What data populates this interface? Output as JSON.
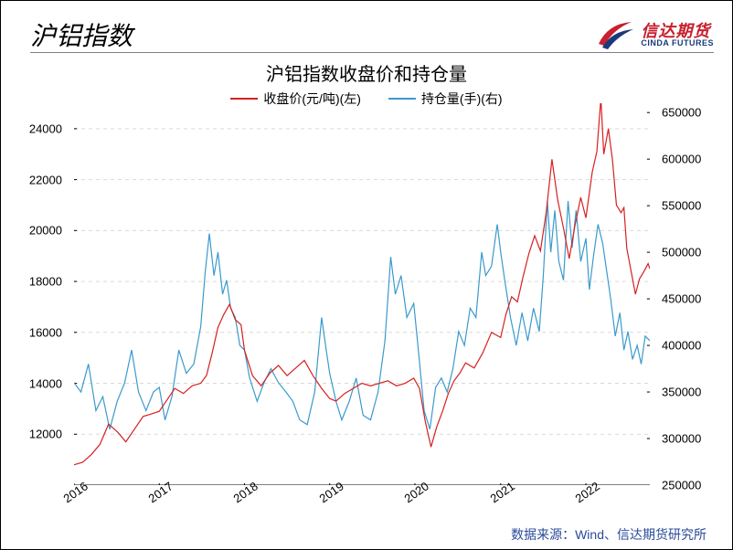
{
  "page_title": "沪铝指数",
  "logo": {
    "cn": "信达期货",
    "en": "CINDA FUTURES",
    "red": "#c8202f",
    "blue": "#1a3a7a"
  },
  "chart": {
    "type": "line-dual-axis",
    "title": "沪铝指数收盘价和持仓量",
    "legend": [
      {
        "label": "收盘价(元/吨)(左)",
        "color": "#d62020"
      },
      {
        "label": "持仓量(手)(右)",
        "color": "#3a9acc"
      }
    ],
    "x": {
      "ticks": [
        "2016",
        "2017",
        "2018",
        "2019",
        "2020",
        "2021",
        "2022"
      ],
      "tick_positions": [
        0,
        0.148,
        0.296,
        0.444,
        0.592,
        0.741,
        0.889
      ],
      "rotate": -35
    },
    "y_left": {
      "min": 10000,
      "max": 25000,
      "ticks": [
        12000,
        14000,
        16000,
        18000,
        20000,
        22000,
        24000
      ],
      "color": "#000"
    },
    "y_right": {
      "min": 250000,
      "max": 660000,
      "ticks": [
        250000,
        300000,
        350000,
        400000,
        450000,
        500000,
        550000,
        600000,
        650000
      ],
      "color": "#000"
    },
    "grid_color": "#d9d9d9",
    "background_color": "#ffffff",
    "line_width": 1.2,
    "series_price": {
      "color": "#d62020",
      "axis": "left",
      "data": [
        [
          0.0,
          10800
        ],
        [
          0.015,
          10900
        ],
        [
          0.03,
          11200
        ],
        [
          0.045,
          11600
        ],
        [
          0.06,
          12400
        ],
        [
          0.075,
          12100
        ],
        [
          0.09,
          11700
        ],
        [
          0.105,
          12200
        ],
        [
          0.12,
          12700
        ],
        [
          0.135,
          12800
        ],
        [
          0.148,
          12900
        ],
        [
          0.16,
          13300
        ],
        [
          0.175,
          13800
        ],
        [
          0.19,
          13600
        ],
        [
          0.205,
          13900
        ],
        [
          0.22,
          14000
        ],
        [
          0.23,
          14300
        ],
        [
          0.24,
          15200
        ],
        [
          0.25,
          16200
        ],
        [
          0.26,
          16700
        ],
        [
          0.27,
          17100
        ],
        [
          0.28,
          16500
        ],
        [
          0.29,
          16300
        ],
        [
          0.296,
          15300
        ],
        [
          0.31,
          14300
        ],
        [
          0.325,
          13900
        ],
        [
          0.34,
          14400
        ],
        [
          0.355,
          14700
        ],
        [
          0.37,
          14300
        ],
        [
          0.385,
          14600
        ],
        [
          0.4,
          14900
        ],
        [
          0.415,
          14300
        ],
        [
          0.43,
          13800
        ],
        [
          0.444,
          13400
        ],
        [
          0.455,
          13300
        ],
        [
          0.47,
          13600
        ],
        [
          0.485,
          13800
        ],
        [
          0.5,
          14000
        ],
        [
          0.515,
          13900
        ],
        [
          0.53,
          14000
        ],
        [
          0.545,
          14100
        ],
        [
          0.56,
          13900
        ],
        [
          0.575,
          14000
        ],
        [
          0.59,
          14200
        ],
        [
          0.6,
          13800
        ],
        [
          0.61,
          12500
        ],
        [
          0.62,
          11500
        ],
        [
          0.63,
          12300
        ],
        [
          0.64,
          12900
        ],
        [
          0.65,
          13600
        ],
        [
          0.66,
          14100
        ],
        [
          0.67,
          14400
        ],
        [
          0.68,
          14800
        ],
        [
          0.695,
          14600
        ],
        [
          0.71,
          15200
        ],
        [
          0.725,
          16000
        ],
        [
          0.741,
          15800
        ],
        [
          0.75,
          16700
        ],
        [
          0.76,
          17400
        ],
        [
          0.77,
          17200
        ],
        [
          0.78,
          18200
        ],
        [
          0.79,
          19100
        ],
        [
          0.8,
          19800
        ],
        [
          0.81,
          19200
        ],
        [
          0.82,
          20700
        ],
        [
          0.83,
          22800
        ],
        [
          0.84,
          21200
        ],
        [
          0.85,
          20100
        ],
        [
          0.86,
          18900
        ],
        [
          0.87,
          20200
        ],
        [
          0.88,
          21300
        ],
        [
          0.889,
          20500
        ],
        [
          0.9,
          22300
        ],
        [
          0.908,
          23100
        ],
        [
          0.915,
          25200
        ],
        [
          0.92,
          23000
        ],
        [
          0.928,
          24000
        ],
        [
          0.935,
          22800
        ],
        [
          0.942,
          21000
        ],
        [
          0.95,
          20700
        ],
        [
          0.955,
          20900
        ],
        [
          0.96,
          19300
        ],
        [
          0.965,
          18700
        ],
        [
          0.97,
          18100
        ],
        [
          0.975,
          17500
        ],
        [
          0.982,
          18100
        ],
        [
          0.99,
          18400
        ],
        [
          0.997,
          18700
        ],
        [
          1.0,
          18500
        ]
      ]
    },
    "series_oi": {
      "color": "#3a9acc",
      "axis": "right",
      "data": [
        [
          0.0,
          360000
        ],
        [
          0.012,
          350000
        ],
        [
          0.025,
          380000
        ],
        [
          0.038,
          330000
        ],
        [
          0.05,
          345000
        ],
        [
          0.062,
          310000
        ],
        [
          0.075,
          340000
        ],
        [
          0.088,
          360000
        ],
        [
          0.1,
          395000
        ],
        [
          0.112,
          350000
        ],
        [
          0.125,
          330000
        ],
        [
          0.138,
          350000
        ],
        [
          0.148,
          355000
        ],
        [
          0.158,
          320000
        ],
        [
          0.17,
          345000
        ],
        [
          0.182,
          395000
        ],
        [
          0.195,
          370000
        ],
        [
          0.208,
          380000
        ],
        [
          0.22,
          420000
        ],
        [
          0.228,
          480000
        ],
        [
          0.235,
          520000
        ],
        [
          0.243,
          475000
        ],
        [
          0.25,
          500000
        ],
        [
          0.258,
          455000
        ],
        [
          0.265,
          470000
        ],
        [
          0.272,
          440000
        ],
        [
          0.28,
          430000
        ],
        [
          0.288,
          400000
        ],
        [
          0.296,
          395000
        ],
        [
          0.305,
          365000
        ],
        [
          0.318,
          340000
        ],
        [
          0.33,
          360000
        ],
        [
          0.342,
          375000
        ],
        [
          0.355,
          360000
        ],
        [
          0.368,
          350000
        ],
        [
          0.38,
          340000
        ],
        [
          0.392,
          320000
        ],
        [
          0.405,
          315000
        ],
        [
          0.418,
          350000
        ],
        [
          0.43,
          430000
        ],
        [
          0.438,
          395000
        ],
        [
          0.444,
          370000
        ],
        [
          0.455,
          340000
        ],
        [
          0.465,
          320000
        ],
        [
          0.478,
          340000
        ],
        [
          0.49,
          365000
        ],
        [
          0.502,
          325000
        ],
        [
          0.515,
          320000
        ],
        [
          0.528,
          350000
        ],
        [
          0.54,
          405000
        ],
        [
          0.55,
          495000
        ],
        [
          0.558,
          455000
        ],
        [
          0.568,
          475000
        ],
        [
          0.578,
          430000
        ],
        [
          0.59,
          445000
        ],
        [
          0.598,
          395000
        ],
        [
          0.608,
          330000
        ],
        [
          0.618,
          310000
        ],
        [
          0.628,
          355000
        ],
        [
          0.638,
          365000
        ],
        [
          0.648,
          350000
        ],
        [
          0.658,
          375000
        ],
        [
          0.668,
          415000
        ],
        [
          0.678,
          400000
        ],
        [
          0.688,
          440000
        ],
        [
          0.698,
          430000
        ],
        [
          0.708,
          500000
        ],
        [
          0.715,
          475000
        ],
        [
          0.725,
          485000
        ],
        [
          0.735,
          530000
        ],
        [
          0.741,
          500000
        ],
        [
          0.748,
          470000
        ],
        [
          0.758,
          430000
        ],
        [
          0.768,
          400000
        ],
        [
          0.778,
          435000
        ],
        [
          0.788,
          405000
        ],
        [
          0.798,
          440000
        ],
        [
          0.808,
          415000
        ],
        [
          0.815,
          475000
        ],
        [
          0.822,
          555000
        ],
        [
          0.828,
          500000
        ],
        [
          0.835,
          545000
        ],
        [
          0.842,
          490000
        ],
        [
          0.85,
          470000
        ],
        [
          0.858,
          555000
        ],
        [
          0.865,
          505000
        ],
        [
          0.872,
          545000
        ],
        [
          0.88,
          490000
        ],
        [
          0.889,
          515000
        ],
        [
          0.895,
          460000
        ],
        [
          0.902,
          495000
        ],
        [
          0.91,
          530000
        ],
        [
          0.918,
          510000
        ],
        [
          0.925,
          480000
        ],
        [
          0.932,
          450000
        ],
        [
          0.94,
          410000
        ],
        [
          0.948,
          435000
        ],
        [
          0.955,
          395000
        ],
        [
          0.962,
          415000
        ],
        [
          0.97,
          385000
        ],
        [
          0.978,
          400000
        ],
        [
          0.985,
          380000
        ],
        [
          0.992,
          410000
        ],
        [
          1.0,
          405000
        ]
      ]
    }
  },
  "source": "数据来源：Wind、信达期货研究所"
}
